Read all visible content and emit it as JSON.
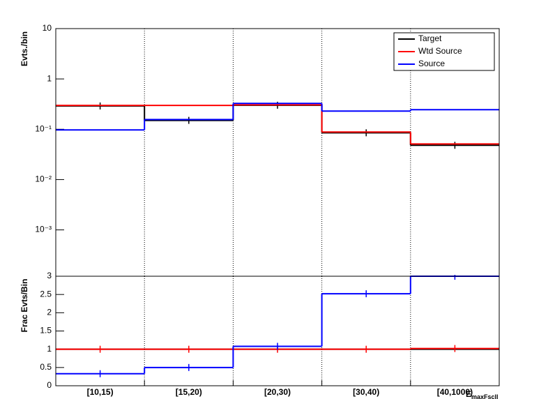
{
  "chart_data": [
    {
      "type": "step",
      "ylabel": "Evts./bin",
      "log_y": true,
      "ylim": [
        0.00012,
        10
      ],
      "yticks": [
        10,
        1,
        {
          "value": 0.1,
          "label": "10⁻¹"
        },
        {
          "value": 0.01,
          "label": "10⁻²"
        },
        {
          "value": 0.001,
          "label": "10⁻³"
        }
      ],
      "grid_x": true,
      "legend": "top-right",
      "series": [
        {
          "name": "Target",
          "color": "#000000",
          "values": [
            0.29,
            0.15,
            0.3,
            0.085,
            0.048
          ],
          "markers": true
        },
        {
          "name": "Wtd Source",
          "color": "#ff0000",
          "values": [
            0.297,
            0.297,
            0.306,
            0.088,
            0.051
          ]
        },
        {
          "name": "Source",
          "color": "#0000ff",
          "values": [
            0.097,
            0.156,
            0.326,
            0.23,
            0.245
          ]
        }
      ]
    },
    {
      "type": "step",
      "ylabel": "Frac Evts/Bin",
      "xlabel": "E",
      "xlabel_sub": "maxFscll",
      "categories": [
        "[10,15)",
        "[15,20)",
        "[20,30)",
        "[30,40)",
        "[40,1000)"
      ],
      "ylim": [
        0,
        3
      ],
      "yticks": [
        0,
        0.5,
        1,
        1.5,
        2,
        2.5,
        3
      ],
      "grid_x": true,
      "series": [
        {
          "color": "#000000",
          "values": [
            1,
            1,
            1,
            1,
            1
          ]
        },
        {
          "color": "#ff0000",
          "values": [
            1,
            1,
            1,
            1,
            1.02
          ],
          "markers": true
        },
        {
          "color": "#0000ff",
          "values": [
            0.33,
            0.5,
            1.08,
            2.52,
            3
          ],
          "markers": true
        }
      ]
    }
  ]
}
